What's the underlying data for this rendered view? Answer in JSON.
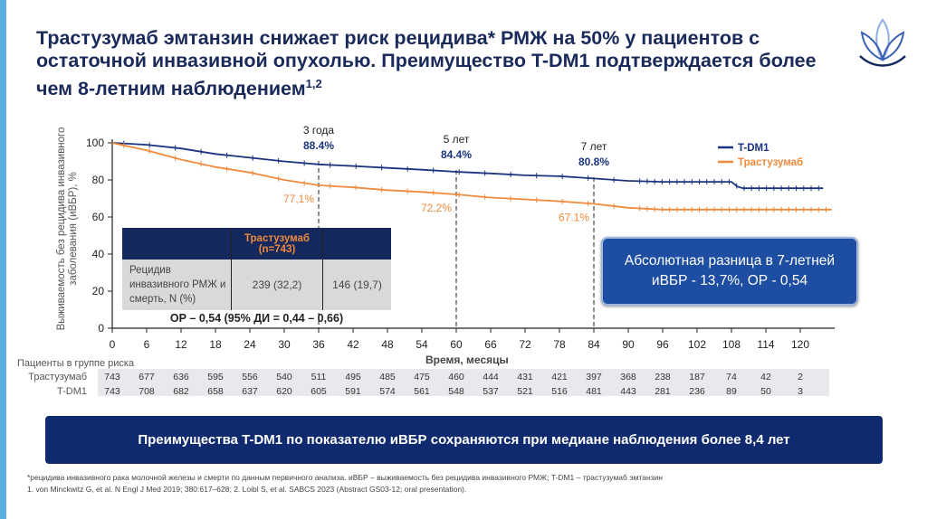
{
  "title": {
    "text": "Трастузумаб эмтанзин снижает риск рецидива* РМЖ на 50% у пациентов с остаточной инвазивной опухолью. Преимущество T-DM1 подтверждается более чем 8-летним наблюдением",
    "sup": "1,2"
  },
  "colors": {
    "tdm1": "#1b3480",
    "trast": "#f08a3c",
    "accent": "#5aaee2"
  },
  "chart_data": {
    "type": "line",
    "title": "",
    "xlabel": "Время, месяцы",
    "ylabel": "Выживаемость без рецидива инвазивного заболевания (иВБР), %",
    "xlim": [
      0,
      126
    ],
    "ylim": [
      0,
      100
    ],
    "xticks": [
      0,
      6,
      12,
      18,
      24,
      30,
      36,
      42,
      48,
      54,
      60,
      66,
      72,
      78,
      84,
      90,
      96,
      102,
      108,
      114,
      120
    ],
    "yticks": [
      0,
      20,
      40,
      60,
      80,
      100
    ],
    "legend": "top-right",
    "series": [
      {
        "name": "T-DM1",
        "color": "#1b3480",
        "x": [
          0,
          3,
          6,
          12,
          18,
          24,
          30,
          36,
          42,
          48,
          54,
          60,
          66,
          72,
          78,
          84,
          90,
          96,
          108,
          109,
          110,
          124
        ],
        "y": [
          100,
          99.5,
          99,
          97,
          94,
          92,
          90,
          88.4,
          87.5,
          86.5,
          85.5,
          84.4,
          83.5,
          82.5,
          82,
          80.8,
          79.5,
          79,
          79,
          76.5,
          75.5,
          75.5
        ]
      },
      {
        "name": "Трастузумаб",
        "color": "#f08a3c",
        "x": [
          0,
          3,
          6,
          12,
          18,
          24,
          30,
          36,
          42,
          48,
          54,
          60,
          66,
          72,
          78,
          84,
          90,
          96,
          125.5
        ],
        "y": [
          100,
          98,
          96,
          91,
          87,
          84,
          80,
          77.1,
          76,
          74.5,
          73.5,
          72.2,
          70.5,
          69.5,
          68.5,
          67.1,
          65,
          64,
          64
        ]
      }
    ],
    "annotations": [
      {
        "x": 36,
        "period": "3 года",
        "tdm1": "88.4%",
        "trast": "77,1%"
      },
      {
        "x": 60,
        "period": "5 лет",
        "tdm1": "84.4%",
        "trast": "72.2%"
      },
      {
        "x": 84,
        "period": "7 лет",
        "tdm1": "80.8%",
        "trast": "67.1%"
      }
    ]
  },
  "table": {
    "col1": "Трастузумаб (n=743)",
    "row_label": "Рецидив инвазивного РМЖ и смерть, N (%)",
    "trast": "239 (32,2)",
    "tdm1": "146 (19,7)",
    "or": "ОР – 0,54 (95% ДИ = 0,44 – 0,66)"
  },
  "callout": "Абсолютная разница в 7-летней иВБР - 13,7%, ОР - 0,54",
  "risk": {
    "header": "Пациенты в группе риска",
    "rows": [
      {
        "label": "Трастузумаб",
        "values": [
          "743",
          "677",
          "636",
          "595",
          "556",
          "540",
          "511",
          "495",
          "485",
          "475",
          "460",
          "444",
          "431",
          "421",
          "397",
          "368",
          "238",
          "187",
          "74",
          "42",
          "2"
        ]
      },
      {
        "label": "T-DM1",
        "values": [
          "743",
          "708",
          "682",
          "658",
          "637",
          "620",
          "605",
          "591",
          "574",
          "561",
          "548",
          "537",
          "521",
          "516",
          "481",
          "443",
          "281",
          "236",
          "89",
          "50",
          "3"
        ]
      }
    ]
  },
  "banner": "Преимущества T-DM1 по показателю иВБР сохраняются при  медиане наблюдения более 8,4 лет",
  "footnotes": [
    "*рецидива инвазивного рака молочной железы и смерти по данным первичного анализа. иВБР – выживаемость без рецидива инвазивного РМЖ; T-DM1 – трастузумаб эмтанзин",
    "1. von Minckwitz G, et al. N Engl J Med 2019; 380:617–628; 2. Loibl S, et al. SABCS 2023 (Abstract GS03-12; oral presentation)."
  ]
}
